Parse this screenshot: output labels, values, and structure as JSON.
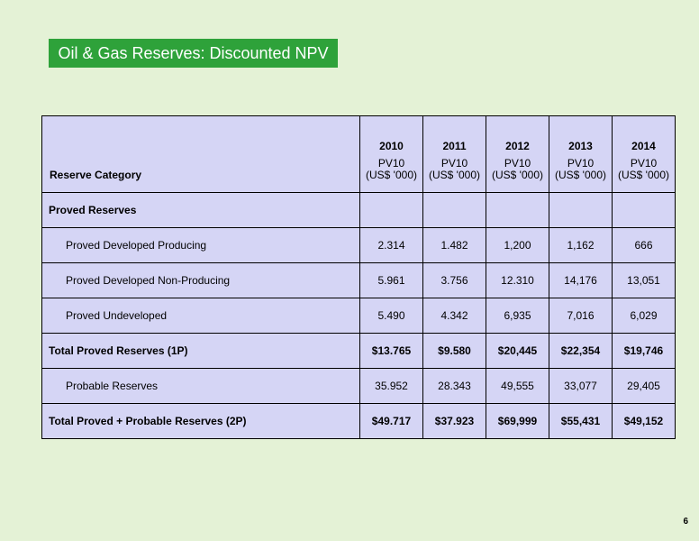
{
  "title": "Oil & Gas Reserves: Discounted NPV",
  "table": {
    "category_header": "Reserve Category",
    "years": [
      "2010",
      "2011",
      "2012",
      "2013",
      "2014"
    ],
    "subheader_line1": "PV10",
    "subheader_line2": "(US$ '000)",
    "section_label": "Proved Reserves",
    "rows": [
      {
        "label": "Proved Developed Producing",
        "values": [
          "2.314",
          "1.482",
          "1,200",
          "1,162",
          "666"
        ]
      },
      {
        "label": "Proved Developed Non-Producing",
        "values": [
          "5.961",
          "3.756",
          "12.310",
          "14,176",
          "13,051"
        ]
      },
      {
        "label": "Proved Undeveloped",
        "values": [
          "5.490",
          "4.342",
          "6,935",
          "7,016",
          "6,029"
        ]
      },
      {
        "label": "Total Proved Reserves (1P)",
        "values": [
          "$13.765",
          "$9.580",
          "$20,445",
          "$22,354",
          "$19,746"
        ]
      },
      {
        "label": "Probable Reserves",
        "values": [
          "35.952",
          "28.343",
          "49,555",
          "33,077",
          "29,405"
        ]
      },
      {
        "label": "Total Proved + Probable Reserves (2P)",
        "values": [
          "$49.717",
          "$37.923",
          "$69,999",
          "$55,431",
          "$49,152"
        ]
      }
    ]
  },
  "page_number": "6"
}
